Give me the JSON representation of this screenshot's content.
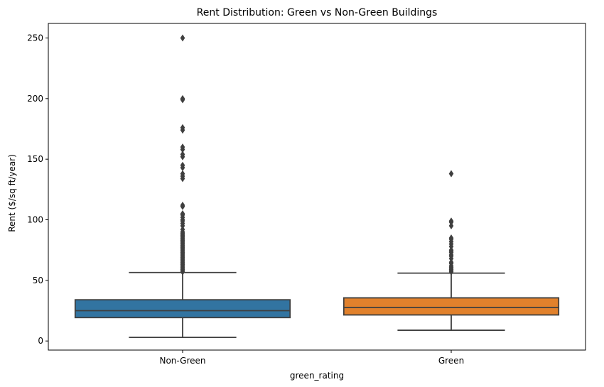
{
  "chart_data": {
    "type": "box",
    "title": "Rent Distribution: Green vs Non-Green Buildings",
    "xlabel": "green_rating",
    "ylabel": "Rent ($/sq ft/year)",
    "categories": [
      "Non-Green",
      "Green"
    ],
    "ylim": [
      -7.5,
      262
    ],
    "yticks": [
      0,
      50,
      100,
      150,
      200,
      250
    ],
    "grid": false,
    "colors": {
      "Non-Green": "#3274a1",
      "Green": "#e1812c",
      "lines": "#3f3f3f"
    },
    "boxes": [
      {
        "category": "Non-Green",
        "whisker_low": 2.98,
        "q1": 19.3,
        "median": 25.0,
        "q3": 34.0,
        "whisker_high": 56.5,
        "outliers": [
          57,
          58,
          59,
          60,
          61,
          62,
          63,
          64,
          65,
          66,
          67,
          68,
          69,
          70,
          71,
          72,
          73,
          74,
          75,
          76,
          77,
          78,
          79,
          80,
          81,
          82,
          83,
          84,
          85,
          86,
          87,
          88,
          89,
          90,
          92,
          95,
          97,
          99,
          100,
          102,
          104,
          105,
          111,
          112,
          134,
          136,
          138,
          143,
          145,
          152,
          154,
          158,
          160,
          174,
          176,
          199,
          200,
          250
        ]
      },
      {
        "category": "Green",
        "whisker_low": 8.87,
        "q1": 21.5,
        "median": 27.6,
        "q3": 35.6,
        "whisker_high": 56.0,
        "outliers": [
          57,
          58,
          59,
          60,
          61,
          62,
          64,
          65,
          68,
          70,
          71,
          73,
          74,
          75,
          78,
          80,
          82,
          84,
          85,
          95,
          98,
          99,
          138
        ]
      }
    ]
  }
}
